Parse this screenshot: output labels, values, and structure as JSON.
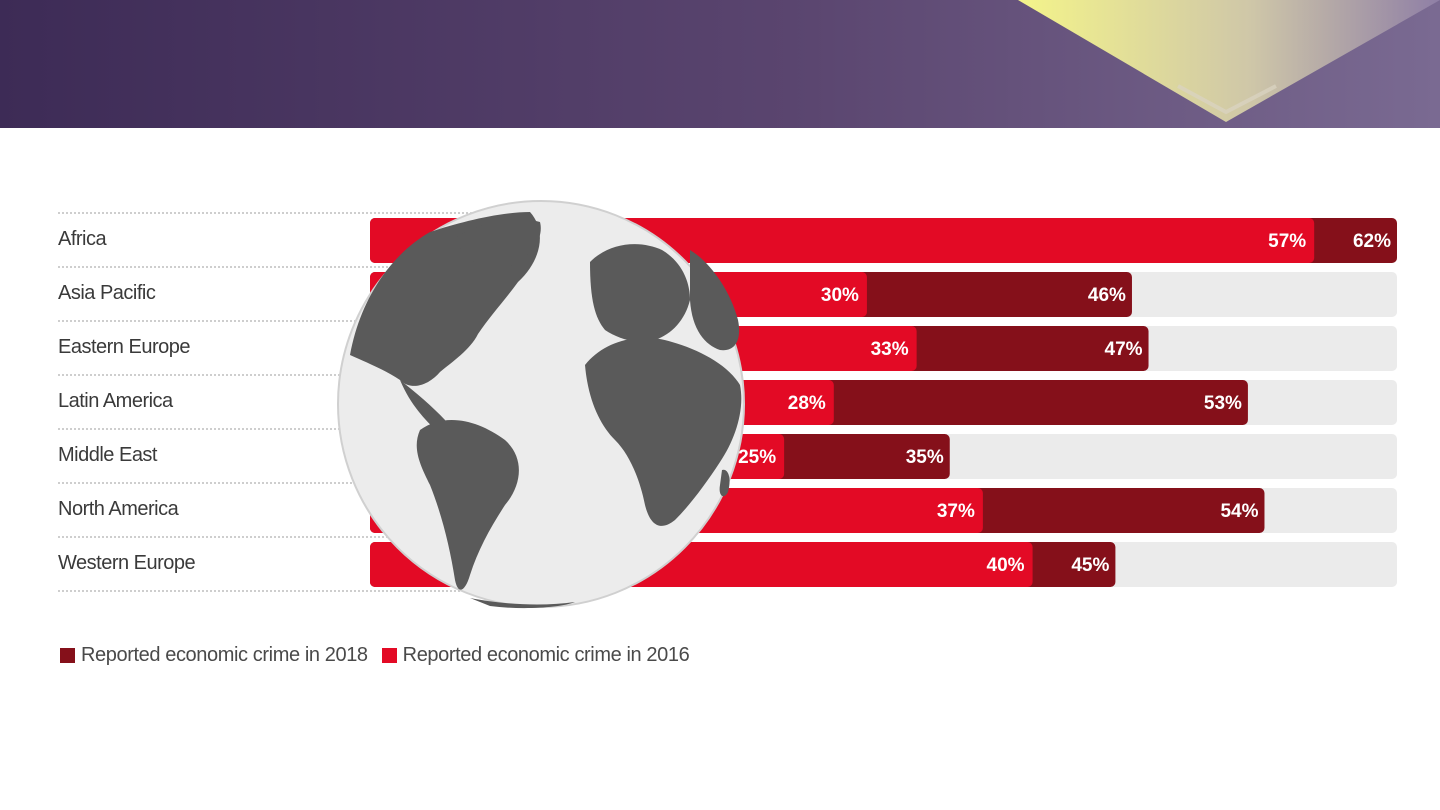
{
  "colors": {
    "banner_start": "#3d2b56",
    "banner_end": "#7a6a92",
    "accent_yellow": "#f2f28a",
    "series_2018": "#85101a",
    "series_2016": "#e30a25",
    "track": "#ebebeb",
    "globe_land": "#5a5a5a",
    "globe_ocean": "#ececec"
  },
  "chart_data": {
    "type": "bar",
    "orientation": "horizontal",
    "categories": [
      "Africa",
      "Asia Pacific",
      "Eastern Europe",
      "Latin America",
      "Middle East",
      "North America",
      "Western Europe"
    ],
    "series": [
      {
        "name": "Reported economic crime in 2018",
        "values": [
          62,
          46,
          47,
          53,
          35,
          54,
          45
        ],
        "labels": [
          "62%",
          "46%",
          "47%",
          "53%",
          "35%",
          "54%",
          "45%"
        ]
      },
      {
        "name": "Reported economic crime in 2016",
        "values": [
          57,
          30,
          33,
          28,
          25,
          37,
          40
        ],
        "labels": [
          "57%",
          "30%",
          "33%",
          "28%",
          "25%",
          "37%",
          "40%"
        ]
      }
    ],
    "xlim": [
      0,
      62
    ],
    "grid": false,
    "legend_position": "bottom-left"
  },
  "legend": {
    "items": [
      {
        "label": "Reported economic crime in 2018",
        "color": "#85101a"
      },
      {
        "label": "Reported economic crime in 2016",
        "color": "#e30a25"
      }
    ]
  }
}
